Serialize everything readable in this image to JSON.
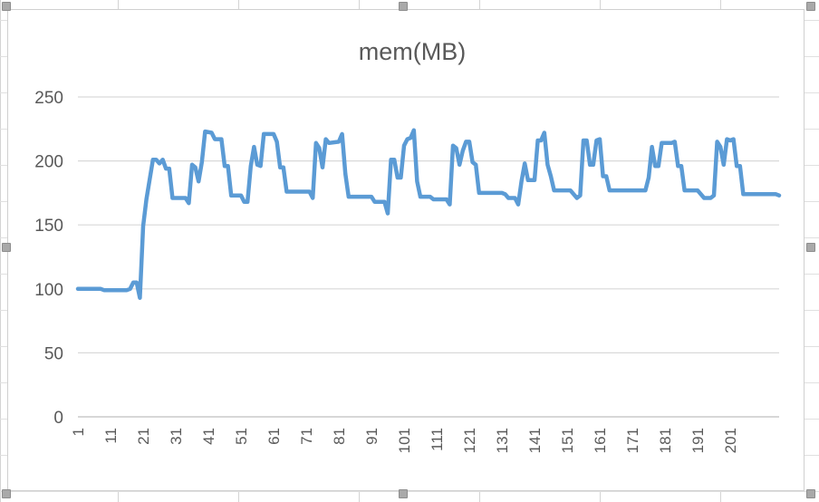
{
  "chart_data": {
    "type": "line",
    "title": "mem(MB)",
    "xlabel": "",
    "ylabel": "",
    "ylim": [
      0,
      250
    ],
    "yticks": [
      "0",
      "50",
      "100",
      "150",
      "200",
      "250"
    ],
    "xtick_labels": [
      "1",
      "11",
      "21",
      "31",
      "41",
      "51",
      "61",
      "71",
      "81",
      "91",
      "101",
      "111",
      "121",
      "131",
      "141",
      "151",
      "161",
      "171",
      "181",
      "191",
      "201"
    ],
    "grid": true,
    "legend": "none",
    "series_color": "#5b9bd5",
    "series": [
      {
        "points": [
          [
            1,
            100
          ],
          [
            8,
            100
          ],
          [
            9,
            99
          ],
          [
            16,
            99
          ],
          [
            17,
            100
          ],
          [
            18,
            105
          ],
          [
            19,
            105
          ],
          [
            20,
            93
          ],
          [
            21,
            149
          ],
          [
            22,
            170
          ],
          [
            24,
            201
          ],
          [
            25,
            201
          ],
          [
            26,
            198
          ],
          [
            27,
            201
          ],
          [
            28,
            194
          ],
          [
            29,
            194
          ],
          [
            30,
            171
          ],
          [
            34,
            171
          ],
          [
            35,
            167
          ],
          [
            36,
            197
          ],
          [
            37,
            195
          ],
          [
            38,
            184
          ],
          [
            39,
            199
          ],
          [
            40,
            223
          ],
          [
            42,
            222
          ],
          [
            43,
            217
          ],
          [
            45,
            217
          ],
          [
            46,
            196
          ],
          [
            47,
            196
          ],
          [
            48,
            173
          ],
          [
            51,
            173
          ],
          [
            52,
            168
          ],
          [
            53,
            168
          ],
          [
            54,
            196
          ],
          [
            55,
            211
          ],
          [
            56,
            197
          ],
          [
            57,
            196
          ],
          [
            58,
            221
          ],
          [
            61,
            221
          ],
          [
            62,
            215
          ],
          [
            63,
            195
          ],
          [
            64,
            195
          ],
          [
            65,
            176
          ],
          [
            72,
            176
          ],
          [
            73,
            171
          ],
          [
            74,
            214
          ],
          [
            75,
            210
          ],
          [
            76,
            195
          ],
          [
            77,
            217
          ],
          [
            78,
            214
          ],
          [
            81,
            215
          ],
          [
            82,
            221
          ],
          [
            83,
            190
          ],
          [
            84,
            172
          ],
          [
            91,
            172
          ],
          [
            92,
            168
          ],
          [
            95,
            168
          ],
          [
            96,
            159
          ],
          [
            97,
            201
          ],
          [
            98,
            201
          ],
          [
            99,
            187
          ],
          [
            100,
            187
          ],
          [
            101,
            212
          ],
          [
            102,
            217
          ],
          [
            103,
            218
          ],
          [
            104,
            224
          ],
          [
            105,
            184
          ],
          [
            106,
            172
          ],
          [
            109,
            172
          ],
          [
            110,
            170
          ],
          [
            114,
            170
          ],
          [
            115,
            166
          ],
          [
            116,
            212
          ],
          [
            117,
            210
          ],
          [
            118,
            197
          ],
          [
            119,
            208
          ],
          [
            120,
            215
          ],
          [
            121,
            215
          ],
          [
            122,
            199
          ],
          [
            123,
            197
          ],
          [
            124,
            175
          ],
          [
            131,
            175
          ],
          [
            132,
            174
          ],
          [
            133,
            171
          ],
          [
            135,
            171
          ],
          [
            136,
            166
          ],
          [
            137,
            184
          ],
          [
            138,
            198
          ],
          [
            139,
            185
          ],
          [
            141,
            185
          ],
          [
            142,
            216
          ],
          [
            143,
            216
          ],
          [
            144,
            222
          ],
          [
            145,
            197
          ],
          [
            146,
            188
          ],
          [
            147,
            177
          ],
          [
            152,
            177
          ],
          [
            153,
            174
          ],
          [
            154,
            171
          ],
          [
            155,
            173
          ],
          [
            156,
            216
          ],
          [
            157,
            216
          ],
          [
            158,
            197
          ],
          [
            159,
            197
          ],
          [
            160,
            216
          ],
          [
            161,
            217
          ],
          [
            162,
            188
          ],
          [
            163,
            188
          ],
          [
            164,
            177
          ],
          [
            175,
            177
          ],
          [
            176,
            187
          ],
          [
            177,
            211
          ],
          [
            178,
            196
          ],
          [
            179,
            196
          ],
          [
            180,
            214
          ],
          [
            183,
            214
          ],
          [
            184,
            215
          ],
          [
            185,
            196
          ],
          [
            186,
            196
          ],
          [
            187,
            177
          ],
          [
            191,
            177
          ],
          [
            193,
            171
          ],
          [
            195,
            171
          ],
          [
            196,
            173
          ],
          [
            197,
            215
          ],
          [
            198,
            211
          ],
          [
            199,
            197
          ],
          [
            200,
            217
          ],
          [
            201,
            216
          ],
          [
            202,
            217
          ],
          [
            203,
            196
          ],
          [
            204,
            196
          ],
          [
            205,
            174
          ],
          [
            215,
            174
          ],
          [
            216,
            173
          ]
        ]
      }
    ]
  }
}
